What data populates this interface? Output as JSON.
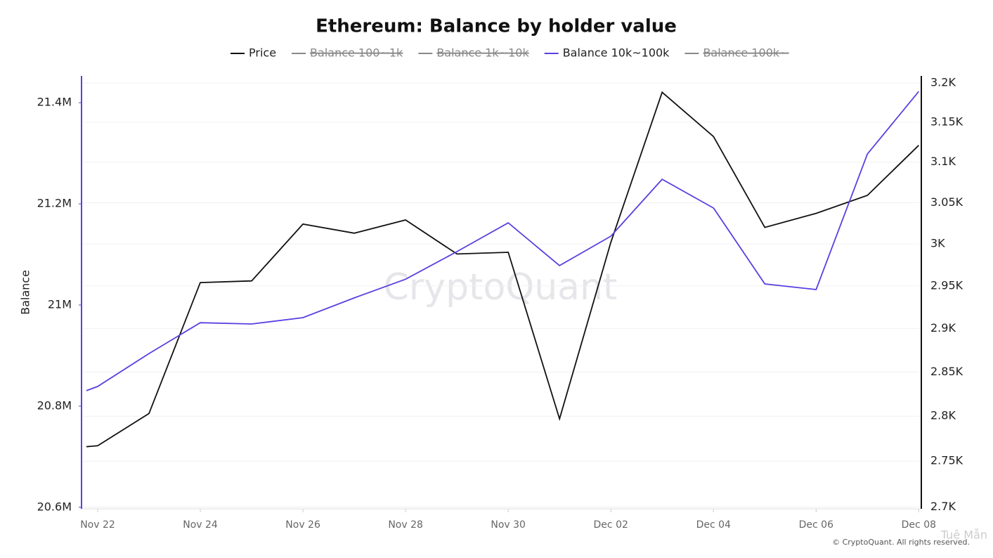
{
  "chart_data": {
    "type": "line",
    "title": "Ethereum: Balance by holder value",
    "ylabel": "Balance",
    "watermark": "CryptoQuant",
    "footer": "© CryptoQuant. All rights reserved.",
    "credit": "Tuệ Mẫn",
    "x": [
      -0.22,
      0,
      1,
      2,
      3,
      4,
      5,
      6,
      7,
      8,
      9,
      10,
      11,
      12,
      13,
      14,
      15,
      16
    ],
    "xlim": [
      -0.315,
      16.05
    ],
    "xticks": [
      {
        "value": 0,
        "label": "Nov 22"
      },
      {
        "value": 2,
        "label": "Nov 24"
      },
      {
        "value": 4,
        "label": "Nov 26"
      },
      {
        "value": 6,
        "label": "Nov 28"
      },
      {
        "value": 8,
        "label": "Nov 30"
      },
      {
        "value": 10,
        "label": "Dec 02"
      },
      {
        "value": 12,
        "label": "Dec 04"
      },
      {
        "value": 14,
        "label": "Dec 06"
      },
      {
        "value": 16,
        "label": "Dec 08"
      }
    ],
    "ylim": [
      20597000,
      21453000
    ],
    "yticks": [
      {
        "value": 20600000,
        "label": "20.6M"
      },
      {
        "value": 20800000,
        "label": "20.8M"
      },
      {
        "value": 21000000,
        "label": "21M"
      },
      {
        "value": 21200000,
        "label": "21.2M"
      },
      {
        "value": 21400000,
        "label": "21.4M"
      }
    ],
    "y2lim": [
      2698,
      3209
    ],
    "y2log": true,
    "y2ticks": [
      {
        "value": 2700,
        "label": "2.7K"
      },
      {
        "value": 2750,
        "label": "2.75K"
      },
      {
        "value": 2800,
        "label": "2.8K"
      },
      {
        "value": 2850,
        "label": "2.85K"
      },
      {
        "value": 2900,
        "label": "2.9K"
      },
      {
        "value": 2950,
        "label": "2.95K"
      },
      {
        "value": 3000,
        "label": "3K"
      },
      {
        "value": 3050,
        "label": "3.05K"
      },
      {
        "value": 3100,
        "label": "3.1K"
      },
      {
        "value": 3150,
        "label": "3.15K"
      },
      {
        "value": 3200,
        "label": "3.2K"
      }
    ],
    "grid": true,
    "series": [
      {
        "name": "Price",
        "color": "#111111",
        "axis": "y2",
        "values": [
          2766,
          2767,
          2803,
          2954,
          2956,
          3024,
          3013,
          3029,
          2988,
          2990,
          2797,
          3002,
          3188,
          3132,
          3020,
          3037,
          3059,
          3121
        ]
      },
      {
        "name": "Balance 10k~100k",
        "color": "#5b3fe0",
        "axis": "y",
        "values": [
          20830600,
          20839000,
          20904000,
          20965000,
          20962500,
          20975000,
          21014000,
          21051000,
          21105600,
          21162500,
          21078000,
          21136000,
          21248600,
          21191700,
          21041700,
          21030600,
          21298600,
          21422200
        ]
      }
    ],
    "legend": [
      {
        "name": "Price",
        "color": "#111111",
        "hidden": false
      },
      {
        "name": "Balance 100~1k",
        "color": "#888888",
        "hidden": true
      },
      {
        "name": "Balance 1k~10k",
        "color": "#888888",
        "hidden": true
      },
      {
        "name": "Balance 10k~100k",
        "color": "#5b3fe0",
        "hidden": false
      },
      {
        "name": "Balance 100k~",
        "color": "#888888",
        "hidden": true
      }
    ]
  }
}
